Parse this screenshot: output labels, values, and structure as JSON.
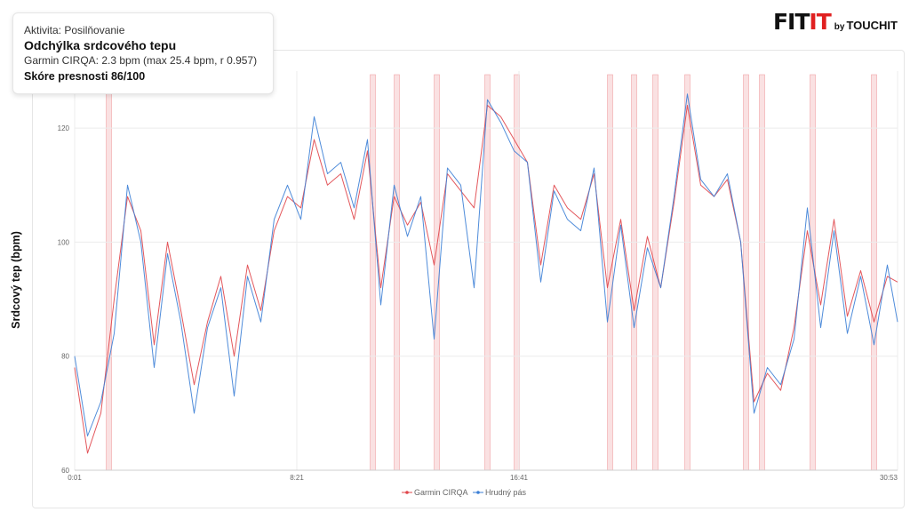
{
  "info": {
    "activity": "Aktivita: Posilňovanie",
    "title": "Odchýlka srdcového tepu",
    "stats": "Garmin CIRQA: 2.3 bpm  (max 25.4 bpm, r 0.957)",
    "score": "Skóre presnosti 86/100"
  },
  "logo": {
    "fit": "FIT",
    "it": "IT",
    "by": "by",
    "brand": "TOUCHIT"
  },
  "colors": {
    "garmin": "#e0454a",
    "chest": "#3c7fd6",
    "band": "#f6c9cb",
    "grid": "#ececec",
    "brand_red": "#e02020"
  },
  "chart_data": {
    "type": "line",
    "ylabel": "Srdcový tep (bpm)",
    "xlabel": "",
    "x_ticks": [
      "0:01",
      "8:21",
      "16:41",
      "30:53"
    ],
    "x_tick_minutes": [
      0.0167,
      8.35,
      16.683,
      30.883
    ],
    "xlim": [
      0.0167,
      30.883
    ],
    "ylim": [
      60,
      130
    ],
    "y_ticks": [
      60,
      80,
      100,
      120
    ],
    "grid": true,
    "legend_position": "bottom-center",
    "deviation_band_minutes": [
      1.3,
      11.2,
      12.1,
      13.6,
      15.5,
      16.6,
      20.1,
      21.0,
      21.8,
      23.0,
      25.2,
      25.8,
      27.7,
      30.0
    ],
    "x_minutes": [
      0.0167,
      0.5,
      1.0,
      1.5,
      2.0,
      2.5,
      3.0,
      3.5,
      4.0,
      4.5,
      5.0,
      5.5,
      6.0,
      6.5,
      7.0,
      7.5,
      8.0,
      8.5,
      9.0,
      9.5,
      10.0,
      10.5,
      11.0,
      11.5,
      12.0,
      12.5,
      13.0,
      13.5,
      14.0,
      14.5,
      15.0,
      15.5,
      16.0,
      16.5,
      17.0,
      17.5,
      18.0,
      18.5,
      19.0,
      19.5,
      20.0,
      20.5,
      21.0,
      21.5,
      22.0,
      22.5,
      23.0,
      23.5,
      24.0,
      24.5,
      25.0,
      25.5,
      26.0,
      26.5,
      27.0,
      27.5,
      28.0,
      28.5,
      29.0,
      29.5,
      30.0,
      30.5,
      30.883
    ],
    "series": [
      {
        "name": "Garmin CIRQA",
        "color": "#e0454a",
        "values": [
          78,
          63,
          70,
          90,
          108,
          102,
          82,
          100,
          88,
          75,
          86,
          94,
          80,
          96,
          88,
          102,
          108,
          106,
          118,
          110,
          112,
          104,
          116,
          92,
          108,
          103,
          107,
          96,
          112,
          109,
          106,
          124,
          122,
          118,
          114,
          96,
          110,
          106,
          104,
          112,
          92,
          104,
          88,
          101,
          92,
          107,
          124,
          110,
          108,
          111,
          100,
          72,
          77,
          74,
          85,
          102,
          89,
          104,
          87,
          95,
          86,
          94,
          93
        ]
      },
      {
        "name": "Hrudný pás",
        "color": "#3c7fd6",
        "values": [
          80,
          66,
          72,
          84,
          110,
          100,
          78,
          98,
          86,
          70,
          85,
          92,
          73,
          94,
          86,
          104,
          110,
          104,
          122,
          112,
          114,
          106,
          118,
          89,
          110,
          101,
          108,
          83,
          113,
          110,
          92,
          125,
          121,
          116,
          114,
          93,
          109,
          104,
          102,
          113,
          86,
          103,
          85,
          99,
          92,
          108,
          126,
          111,
          108,
          112,
          100,
          70,
          78,
          75,
          83,
          106,
          85,
          102,
          84,
          94,
          82,
          96,
          86
        ]
      }
    ]
  }
}
